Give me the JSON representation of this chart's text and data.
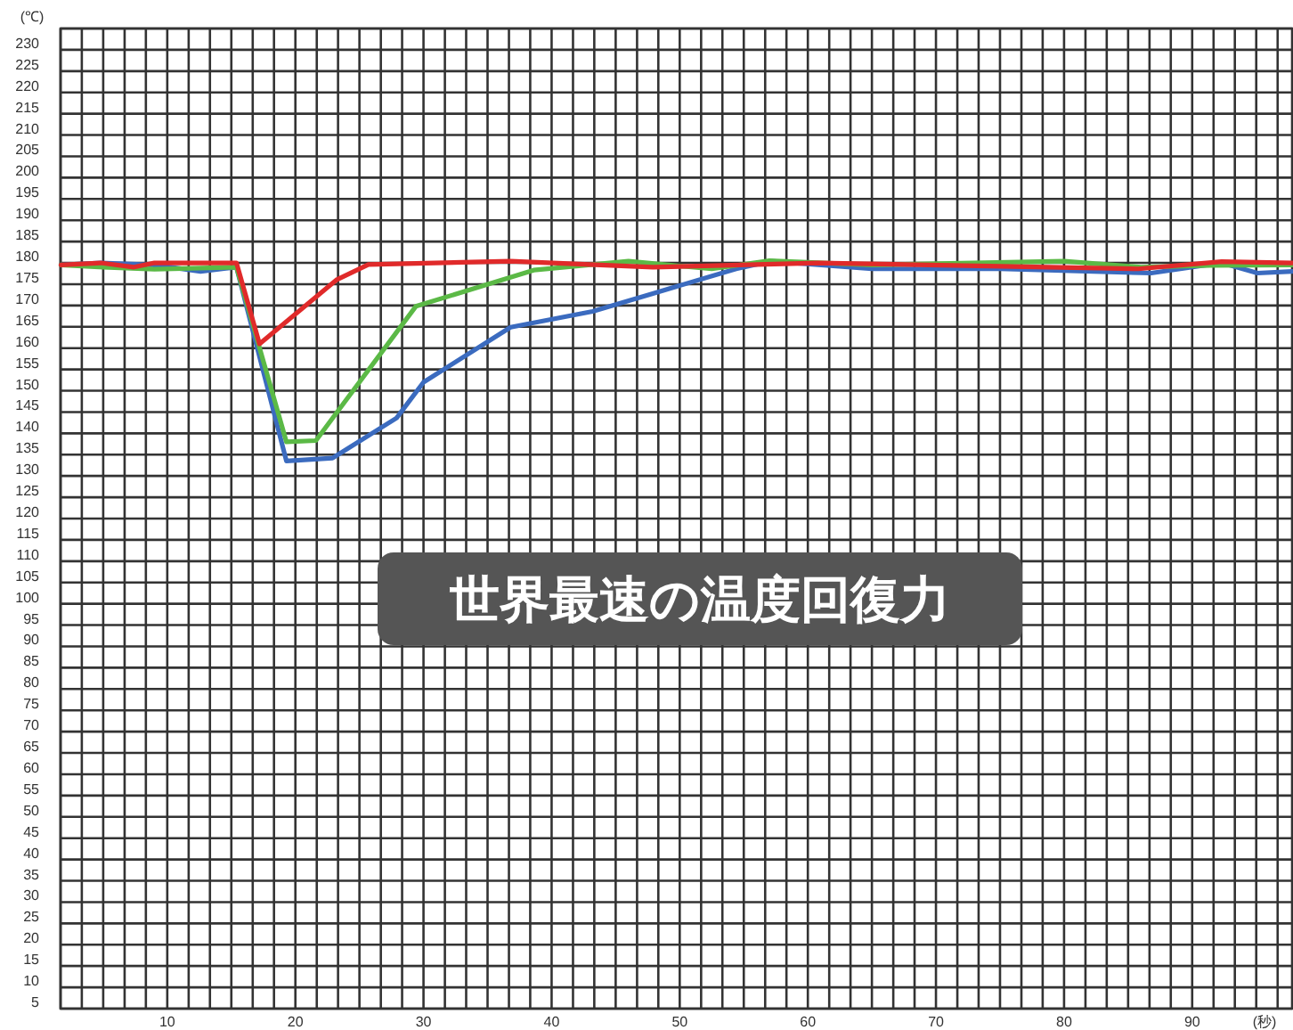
{
  "chart_data": {
    "type": "line",
    "xlabel": "(秒)",
    "ylabel": "(℃)",
    "annotations": [
      "世界最速の温度回復力"
    ],
    "grid": true,
    "xlim": [
      1.67,
      97.8
    ],
    "ylim": [
      5,
      235
    ],
    "xticks": [
      {
        "value": 1.67,
        "label": null
      },
      {
        "value": 3.33,
        "label": null
      },
      {
        "value": 5,
        "label": null
      },
      {
        "value": 6.67,
        "label": null
      },
      {
        "value": 8.33,
        "label": null
      },
      10,
      {
        "value": 11.67,
        "label": null
      },
      {
        "value": 13.33,
        "label": null
      },
      {
        "value": 15,
        "label": null
      },
      {
        "value": 16.67,
        "label": null
      },
      {
        "value": 18.33,
        "label": null
      },
      20,
      {
        "value": 21.67,
        "label": null
      },
      {
        "value": 23.33,
        "label": null
      },
      {
        "value": 25,
        "label": null
      },
      {
        "value": 26.67,
        "label": null
      },
      {
        "value": 28.33,
        "label": null
      },
      30,
      {
        "value": 31.67,
        "label": null
      },
      {
        "value": 33.33,
        "label": null
      },
      {
        "value": 35,
        "label": null
      },
      {
        "value": 36.67,
        "label": null
      },
      {
        "value": 38.33,
        "label": null
      },
      40,
      {
        "value": 41.67,
        "label": null
      },
      {
        "value": 43.33,
        "label": null
      },
      {
        "value": 45,
        "label": null
      },
      {
        "value": 46.67,
        "label": null
      },
      {
        "value": 48.33,
        "label": null
      },
      50,
      {
        "value": 51.67,
        "label": null
      },
      {
        "value": 53.33,
        "label": null
      },
      {
        "value": 55,
        "label": null
      },
      {
        "value": 56.67,
        "label": null
      },
      {
        "value": 58.33,
        "label": null
      },
      60,
      {
        "value": 61.67,
        "label": null
      },
      {
        "value": 63.33,
        "label": null
      },
      {
        "value": 65,
        "label": null
      },
      {
        "value": 66.67,
        "label": null
      },
      {
        "value": 68.33,
        "label": null
      },
      70,
      {
        "value": 71.67,
        "label": null
      },
      {
        "value": 73.33,
        "label": null
      },
      {
        "value": 75,
        "label": null
      },
      {
        "value": 76.67,
        "label": null
      },
      {
        "value": 78.33,
        "label": null
      },
      80,
      {
        "value": 81.67,
        "label": null
      },
      {
        "value": 83.33,
        "label": null
      },
      {
        "value": 85,
        "label": null
      },
      {
        "value": 86.67,
        "label": null
      },
      {
        "value": 88.33,
        "label": null
      },
      90,
      {
        "value": 91.67,
        "label": null
      },
      {
        "value": 93.33,
        "label": null
      },
      {
        "value": 95,
        "label": null
      },
      {
        "value": 96.67,
        "label": null
      }
    ],
    "yticks": [
      5,
      10,
      15,
      20,
      25,
      30,
      35,
      40,
      45,
      50,
      55,
      60,
      65,
      70,
      75,
      80,
      85,
      90,
      95,
      100,
      105,
      110,
      115,
      120,
      125,
      130,
      135,
      140,
      145,
      150,
      155,
      160,
      165,
      170,
      175,
      180,
      185,
      190,
      195,
      200,
      205,
      210,
      215,
      220,
      225,
      230,
      {
        "value": 235,
        "label": null
      }
    ],
    "series": [
      {
        "color": "#3b6bbf",
        "x": [
          1.7,
          4.8,
          9,
          12.6,
          15.4,
          19.3,
          22.9,
          27.9,
          30,
          36.8,
          43.2,
          47.9,
          54.4,
          57.1,
          65,
          75,
          86.8,
          92.3,
          95.1,
          97.8
        ],
        "values": [
          179.5,
          180,
          179.5,
          178,
          179,
          133.5,
          134.2,
          143.6,
          152,
          164.9,
          168.6,
          172.8,
          178.6,
          180.4,
          178.6,
          178.6,
          177.6,
          180,
          177.6,
          178
        ]
      },
      {
        "color": "#5bb946",
        "x": [
          1.7,
          5,
          9,
          15.4,
          19.3,
          21.6,
          29.4,
          38.6,
          46,
          52.5,
          57,
          65,
          80,
          86,
          91.4,
          97.8
        ],
        "values": [
          179.5,
          179,
          178.5,
          179,
          138,
          138.3,
          169.8,
          178.3,
          180.4,
          178.6,
          180.5,
          179.5,
          180.4,
          179,
          179.4,
          179.5
        ]
      },
      {
        "color": "#e02a2a",
        "x": [
          1.7,
          4.8,
          7.4,
          9,
          15.4,
          17.2,
          23.2,
          25.7,
          36.8,
          47.9,
          60.8,
          85.8,
          92.3,
          97.8
        ],
        "values": [
          179.5,
          180,
          179,
          180,
          180,
          161,
          176,
          179.6,
          180.4,
          179,
          180,
          178.6,
          180.3,
          180
        ]
      }
    ]
  }
}
